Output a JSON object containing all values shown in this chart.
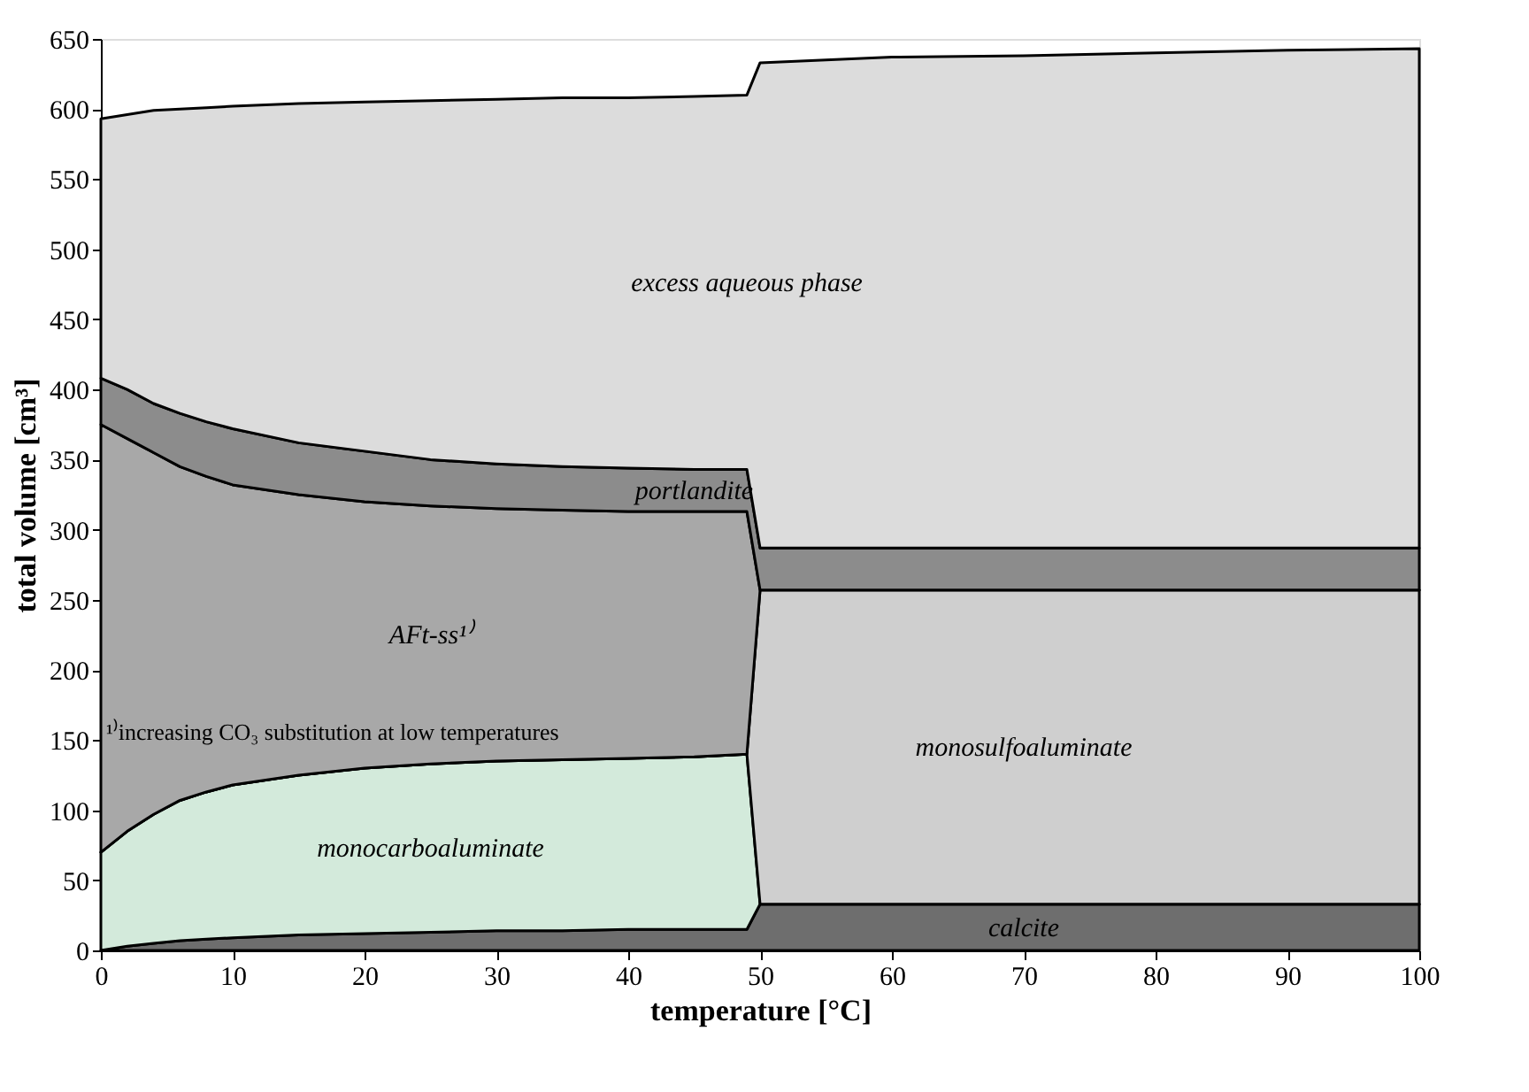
{
  "chart_data": {
    "type": "area",
    "stacked": true,
    "xlabel": "temperature [°C]",
    "ylabel": "total volume [cm³]",
    "x": [
      0,
      2,
      4,
      6,
      8,
      10,
      15,
      20,
      25,
      30,
      35,
      40,
      45,
      49,
      50,
      55,
      60,
      70,
      80,
      90,
      100
    ],
    "series": [
      {
        "name": "calcite",
        "color": "#6e6e6e",
        "values": [
          0,
          3,
          5,
          7,
          8,
          9,
          11,
          12,
          13,
          14,
          14,
          15,
          15,
          15,
          33,
          33,
          33,
          33,
          33,
          33,
          33
        ]
      },
      {
        "name": "monocarboaluminate",
        "color": "#d3eadb",
        "values": [
          70,
          82,
          92,
          100,
          105,
          109,
          114,
          118,
          120,
          121,
          122,
          122,
          123,
          125,
          0,
          0,
          0,
          0,
          0,
          0,
          0
        ]
      },
      {
        "name": "monosulfoaluminate",
        "color": "#cfcfcf",
        "values": [
          0,
          0,
          0,
          0,
          0,
          0,
          0,
          0,
          0,
          0,
          0,
          0,
          0,
          0,
          224,
          224,
          224,
          224,
          224,
          224,
          224
        ]
      },
      {
        "name": "AFt-ss¹⁾",
        "color": "#a8a8a8",
        "values": [
          305,
          280,
          258,
          238,
          225,
          214,
          200,
          190,
          184,
          180,
          178,
          176,
          175,
          173,
          0,
          0,
          0,
          0,
          0,
          0,
          0
        ]
      },
      {
        "name": "portlandite",
        "color": "#8c8c8c",
        "values": [
          33,
          35,
          35,
          38,
          39,
          40,
          37,
          36,
          33,
          32,
          31,
          31,
          30,
          30,
          30,
          30,
          30,
          30,
          30,
          30,
          30
        ]
      },
      {
        "name": "excess aqueous phase",
        "color": "#dcdcdc",
        "values": [
          185,
          196,
          209,
          217,
          224,
          230,
          242,
          249,
          256,
          260,
          263,
          264,
          266,
          267,
          346,
          348,
          350,
          351,
          353,
          355,
          356
        ]
      }
    ],
    "xlim": [
      0,
      100
    ],
    "xticks": [
      0,
      10,
      20,
      30,
      40,
      50,
      60,
      70,
      80,
      90,
      100
    ],
    "ylim": [
      0,
      650
    ],
    "yticks": [
      0,
      50,
      100,
      150,
      200,
      250,
      300,
      350,
      400,
      450,
      500,
      550,
      600,
      650
    ],
    "grid": false,
    "legend": false,
    "annotations": [
      "¹⁾increasing CO₃ substitution at low temperatures"
    ]
  }
}
